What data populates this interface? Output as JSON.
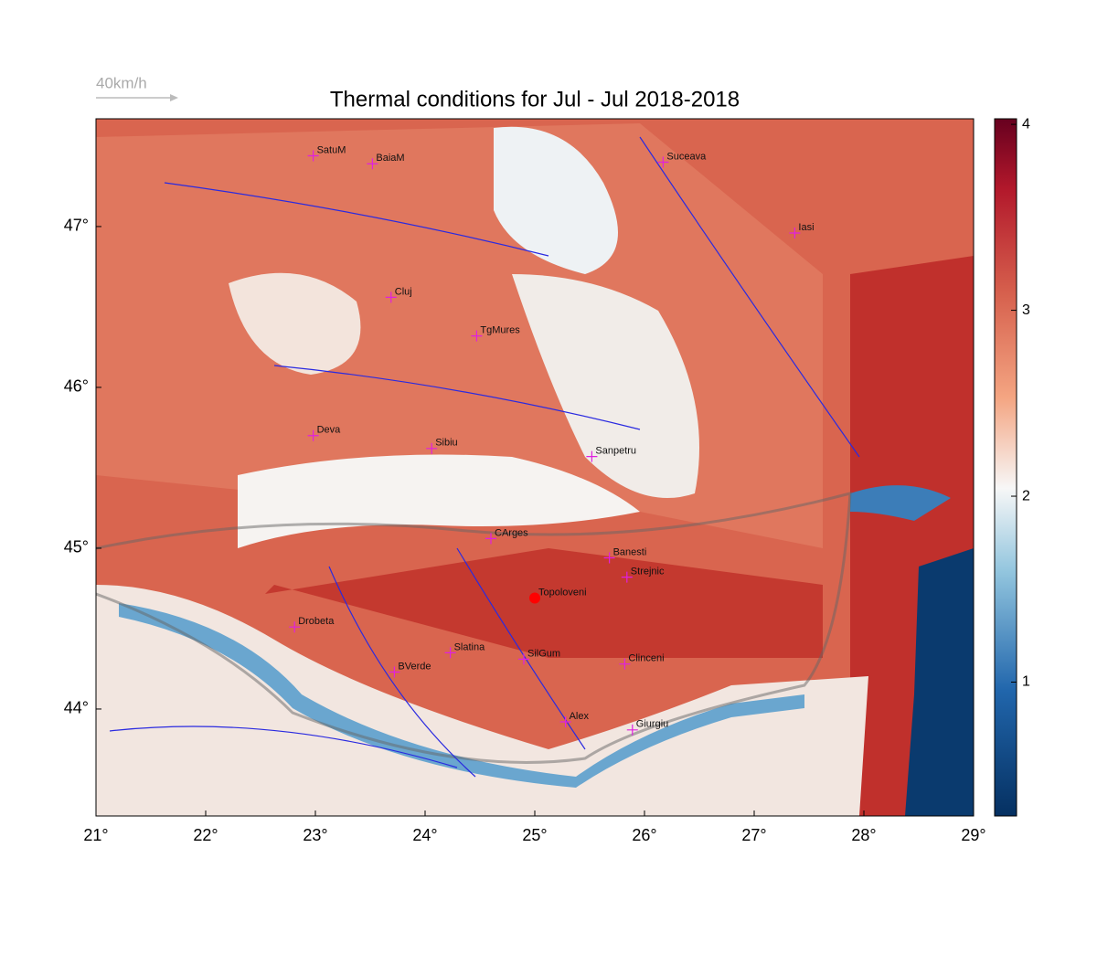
{
  "map": {
    "title": "Thermal conditions for Jul - Jul  2018-2018",
    "wind_reference": "40km/h",
    "xlim": [
      21,
      29
    ],
    "ylim": [
      43.335,
      47.67
    ],
    "xticks": [
      {
        "value": 21,
        "label": "21°"
      },
      {
        "value": 22,
        "label": "22°"
      },
      {
        "value": 23,
        "label": "23°"
      },
      {
        "value": 24,
        "label": "24°"
      },
      {
        "value": 25,
        "label": "25°"
      },
      {
        "value": 26,
        "label": "26°"
      },
      {
        "value": 27,
        "label": "27°"
      },
      {
        "value": 28,
        "label": "28°"
      },
      {
        "value": 29,
        "label": "29°"
      }
    ],
    "yticks": [
      {
        "value": 44,
        "label": "44°"
      },
      {
        "value": 45,
        "label": "45°"
      },
      {
        "value": 46,
        "label": "46°"
      },
      {
        "value": 47,
        "label": "47°"
      }
    ],
    "colorbar": {
      "clim": [
        0.28,
        4.03
      ],
      "ticks": [
        1,
        2,
        3,
        4
      ]
    },
    "cities": [
      {
        "name": "SatuM",
        "lon": 22.98,
        "lat": 47.44
      },
      {
        "name": "BaiaM",
        "lon": 23.52,
        "lat": 47.39
      },
      {
        "name": "Suceava",
        "lon": 26.17,
        "lat": 47.4
      },
      {
        "name": "Iasi",
        "lon": 27.37,
        "lat": 46.96
      },
      {
        "name": "Cluj",
        "lon": 23.69,
        "lat": 46.56
      },
      {
        "name": "TgMures",
        "lon": 24.47,
        "lat": 46.32
      },
      {
        "name": "Deva",
        "lon": 22.98,
        "lat": 45.7
      },
      {
        "name": "Sibiu",
        "lon": 24.06,
        "lat": 45.62
      },
      {
        "name": "Sanpetru",
        "lon": 25.52,
        "lat": 45.57
      },
      {
        "name": "CArges",
        "lon": 24.6,
        "lat": 45.06
      },
      {
        "name": "Banesti",
        "lon": 25.68,
        "lat": 44.94
      },
      {
        "name": "Strejnic",
        "lon": 25.84,
        "lat": 44.82
      },
      {
        "name": "Topoloveni",
        "lon": 25.0,
        "lat": 44.69
      },
      {
        "name": "Drobeta",
        "lon": 22.81,
        "lat": 44.51
      },
      {
        "name": "Slatina",
        "lon": 24.23,
        "lat": 44.35
      },
      {
        "name": "SilGum",
        "lon": 24.9,
        "lat": 44.31
      },
      {
        "name": "Clinceni",
        "lon": 25.82,
        "lat": 44.28
      },
      {
        "name": "BVerde",
        "lon": 23.72,
        "lat": 44.23
      },
      {
        "name": "Alex",
        "lon": 25.28,
        "lat": 43.92
      },
      {
        "name": "Giurgiu",
        "lon": 25.89,
        "lat": 43.87
      }
    ]
  }
}
